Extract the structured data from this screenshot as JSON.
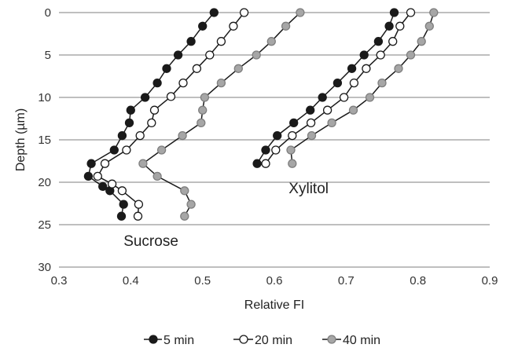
{
  "chart_data": {
    "type": "line",
    "xlabel": "Relative FI",
    "ylabel": "Depth (µm)",
    "xlim": [
      0.3,
      0.9
    ],
    "ylim": [
      0,
      30
    ],
    "y_inverted": true,
    "x_ticks": [
      "0.3",
      "0.4",
      "0.5",
      "0.6",
      "0.7",
      "0.8",
      "0.9"
    ],
    "y_ticks": [
      "0",
      "5",
      "10",
      "15",
      "20",
      "25",
      "30"
    ],
    "grid": "horizontal",
    "legend_position": "bottom",
    "colors": {
      "5 min": "#1a1a1a",
      "20 min": "#ffffff",
      "40 min": "#a6a6a6",
      "line": "#1a1a1a"
    },
    "annotations": [
      {
        "text": "Sucrose",
        "x": 0.39,
        "y": 27.5
      },
      {
        "text": "Xylitol",
        "x": 0.62,
        "y": 21.3
      }
    ],
    "series": [
      {
        "name": "5 min",
        "group": "Sucrose",
        "legend": true,
        "points": [
          [
            0.516,
            0
          ],
          [
            0.5,
            1.6
          ],
          [
            0.484,
            3.4
          ],
          [
            0.466,
            5.0
          ],
          [
            0.45,
            6.6
          ],
          [
            0.437,
            8.3
          ],
          [
            0.42,
            10.0
          ],
          [
            0.4,
            11.5
          ],
          [
            0.398,
            13.0
          ],
          [
            0.388,
            14.5
          ],
          [
            0.377,
            16.2
          ],
          [
            0.345,
            17.8
          ],
          [
            0.341,
            19.3
          ],
          [
            0.361,
            20.5
          ],
          [
            0.371,
            21.0
          ],
          [
            0.39,
            22.6
          ],
          [
            0.387,
            24.0
          ]
        ]
      },
      {
        "name": "20 min",
        "group": "Sucrose",
        "legend": true,
        "points": [
          [
            0.558,
            0
          ],
          [
            0.543,
            1.6
          ],
          [
            0.526,
            3.4
          ],
          [
            0.51,
            5.0
          ],
          [
            0.492,
            6.6
          ],
          [
            0.473,
            8.3
          ],
          [
            0.456,
            9.9
          ],
          [
            0.433,
            11.5
          ],
          [
            0.429,
            13.0
          ],
          [
            0.413,
            14.5
          ],
          [
            0.394,
            16.2
          ],
          [
            0.364,
            17.8
          ],
          [
            0.354,
            19.3
          ],
          [
            0.374,
            20.2
          ],
          [
            0.388,
            21.0
          ],
          [
            0.411,
            22.6
          ],
          [
            0.41,
            24.0
          ]
        ]
      },
      {
        "name": "40 min",
        "group": "Sucrose",
        "legend": true,
        "points": [
          [
            0.636,
            0
          ],
          [
            0.616,
            1.6
          ],
          [
            0.596,
            3.4
          ],
          [
            0.575,
            5.0
          ],
          [
            0.55,
            6.6
          ],
          [
            0.526,
            8.3
          ],
          [
            0.503,
            10.0
          ],
          [
            0.5,
            11.5
          ],
          [
            0.498,
            13.0
          ],
          [
            0.472,
            14.5
          ],
          [
            0.443,
            16.2
          ],
          [
            0.417,
            17.8
          ],
          [
            0.437,
            19.3
          ],
          [
            0.475,
            21.0
          ],
          [
            0.484,
            22.6
          ],
          [
            0.475,
            24.0
          ]
        ]
      },
      {
        "name": "5 min",
        "group": "Xylitol",
        "legend": false,
        "points": [
          [
            0.767,
            0
          ],
          [
            0.76,
            1.6
          ],
          [
            0.745,
            3.4
          ],
          [
            0.725,
            5.0
          ],
          [
            0.708,
            6.6
          ],
          [
            0.688,
            8.3
          ],
          [
            0.667,
            10.0
          ],
          [
            0.65,
            11.5
          ],
          [
            0.627,
            13.0
          ],
          [
            0.604,
            14.5
          ],
          [
            0.588,
            16.2
          ],
          [
            0.576,
            17.8
          ]
        ]
      },
      {
        "name": "20 min",
        "group": "Xylitol",
        "legend": false,
        "points": [
          [
            0.79,
            0
          ],
          [
            0.775,
            1.6
          ],
          [
            0.765,
            3.4
          ],
          [
            0.748,
            5.0
          ],
          [
            0.728,
            6.6
          ],
          [
            0.711,
            8.3
          ],
          [
            0.697,
            10.0
          ],
          [
            0.674,
            11.5
          ],
          [
            0.651,
            13.0
          ],
          [
            0.625,
            14.5
          ],
          [
            0.602,
            16.2
          ],
          [
            0.588,
            17.8
          ]
        ]
      },
      {
        "name": "40 min",
        "group": "Xylitol",
        "legend": false,
        "points": [
          [
            0.822,
            0
          ],
          [
            0.816,
            1.6
          ],
          [
            0.805,
            3.4
          ],
          [
            0.79,
            5.0
          ],
          [
            0.773,
            6.6
          ],
          [
            0.75,
            8.3
          ],
          [
            0.733,
            10.0
          ],
          [
            0.71,
            11.5
          ],
          [
            0.68,
            13.0
          ],
          [
            0.652,
            14.5
          ],
          [
            0.623,
            16.2
          ],
          [
            0.625,
            17.8
          ]
        ]
      }
    ]
  }
}
